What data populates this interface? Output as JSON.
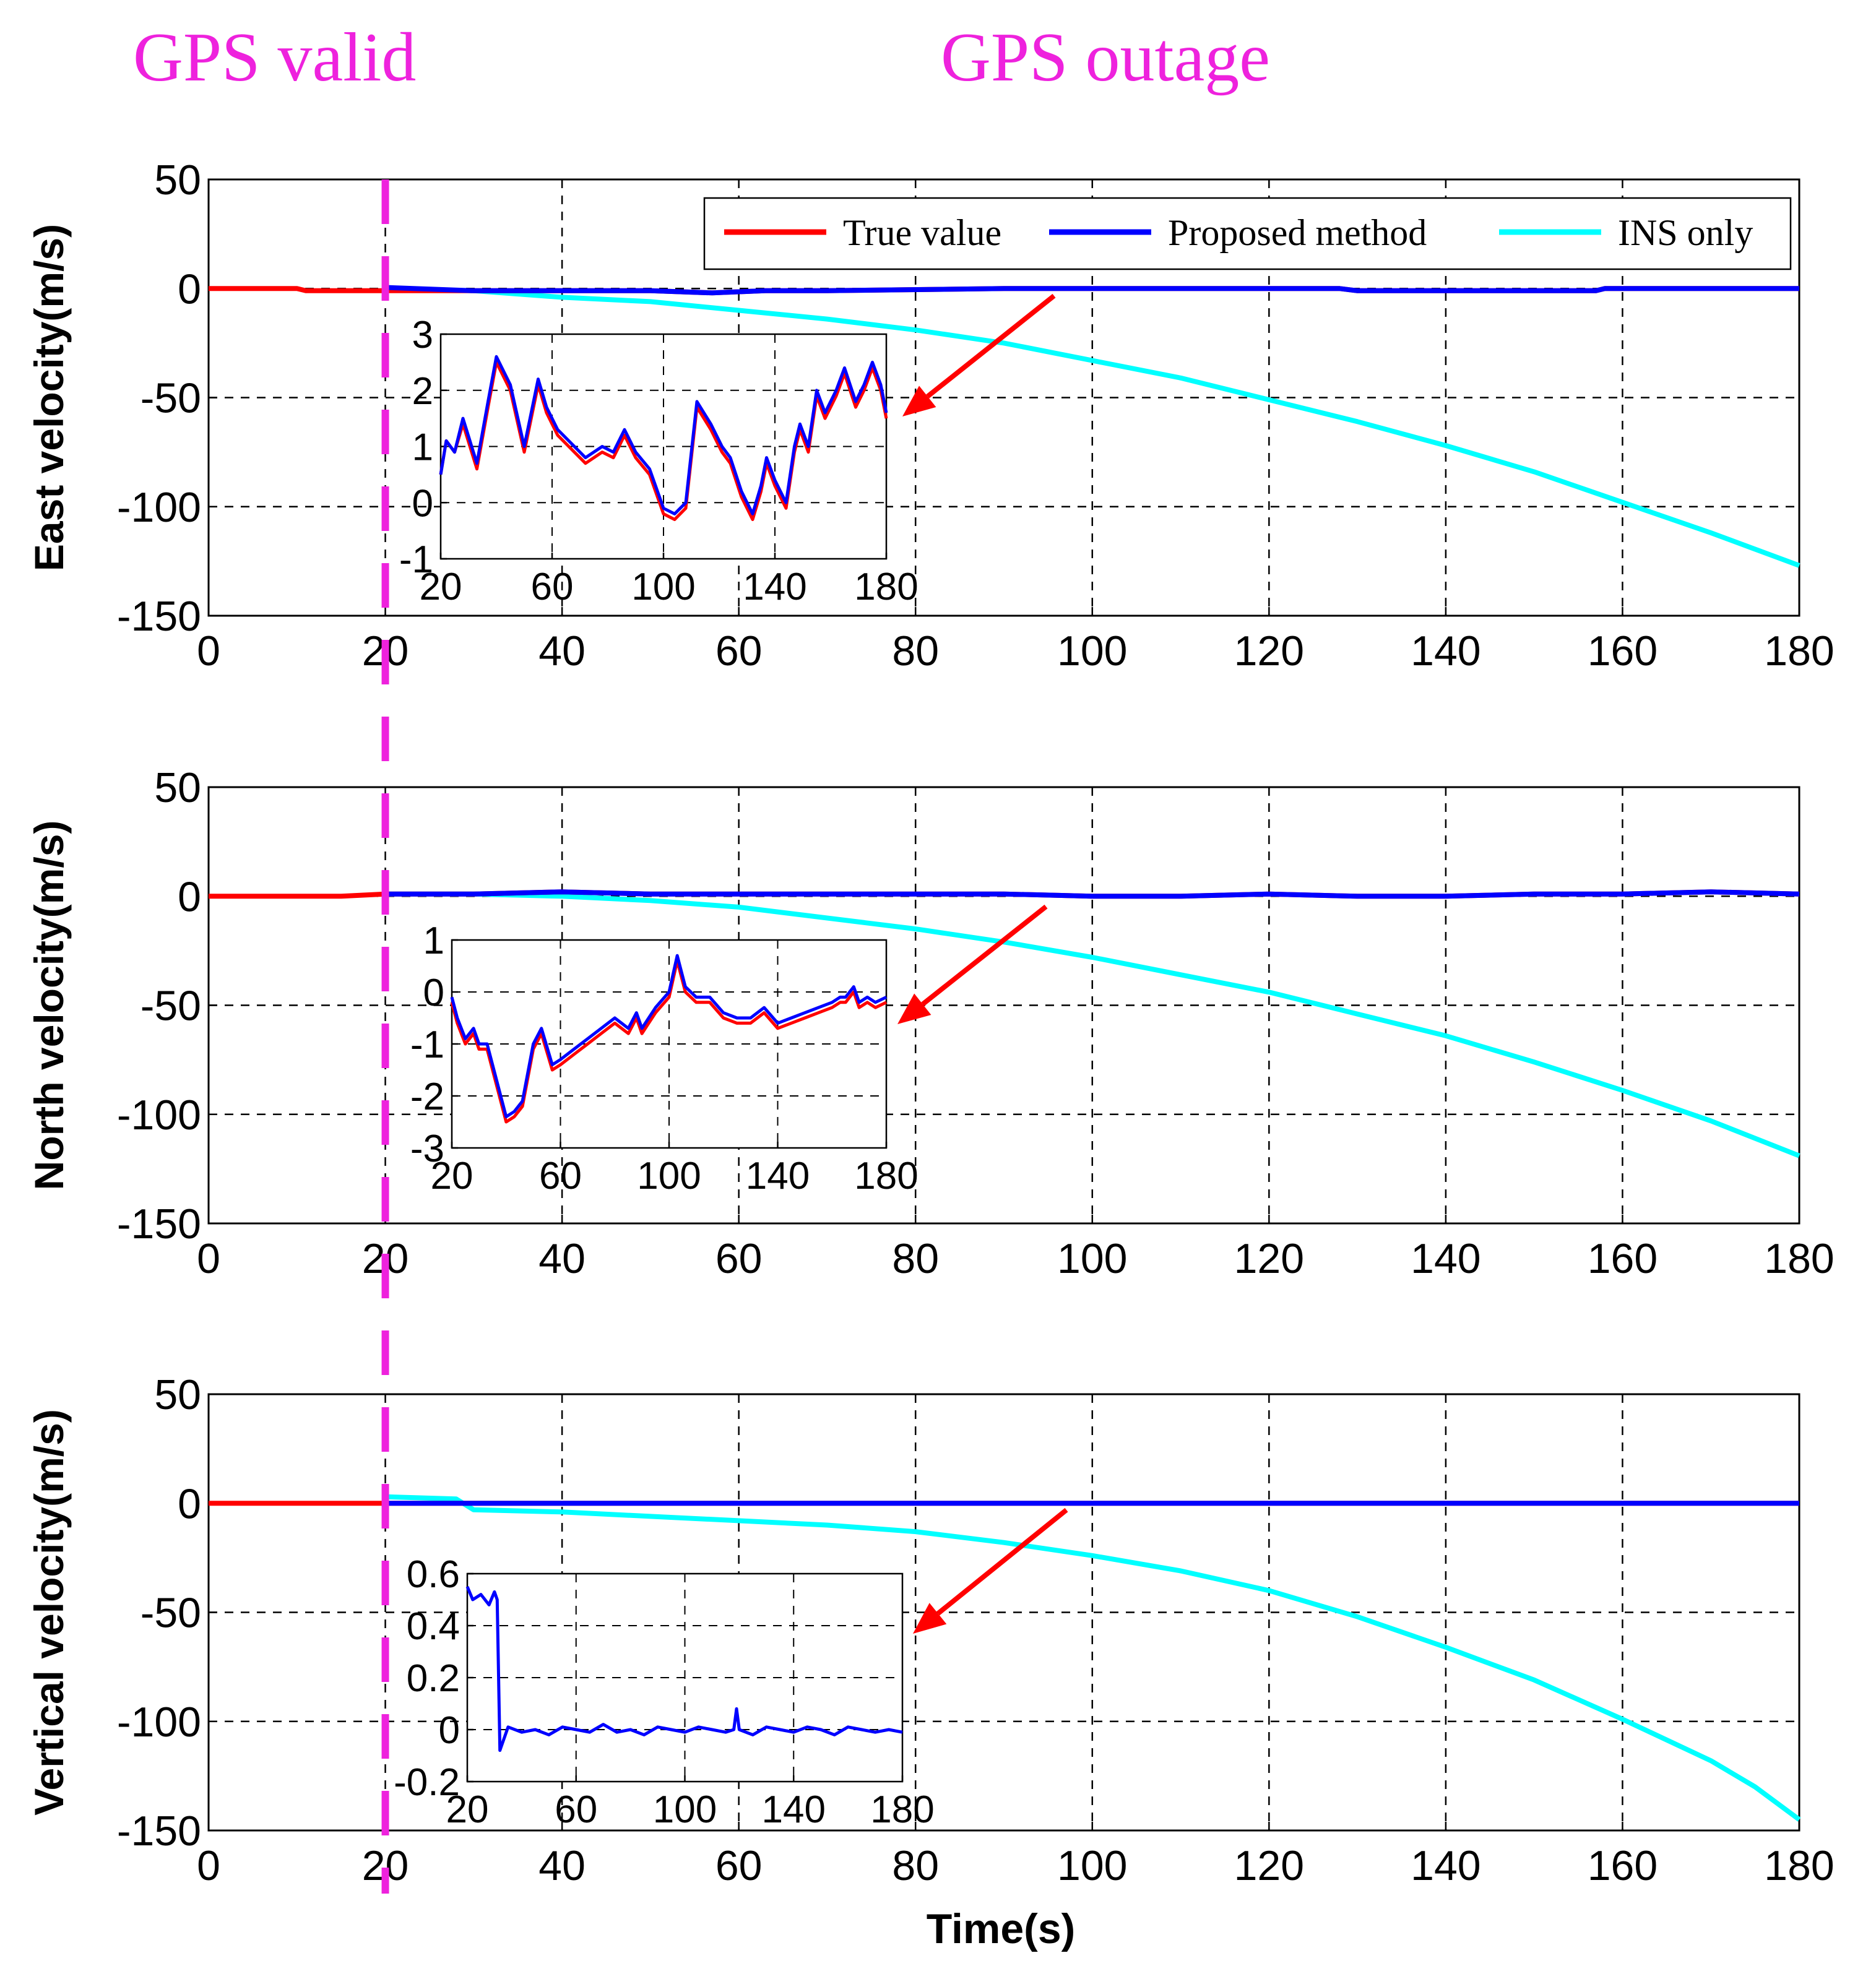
{
  "annotations": {
    "gps_valid": "GPS valid",
    "gps_outage": "GPS outage"
  },
  "colors": {
    "true_value": "#ff0000",
    "proposed_method": "#0000ff",
    "ins_only": "#00ffff",
    "outage_marker": "#ee22dd",
    "arrow": "#ff0000"
  },
  "chart_data": [
    {
      "type": "line",
      "id": "east",
      "ylabel": "East velocity(m/s)",
      "xlabel": "",
      "xlim": [
        0,
        180
      ],
      "ylim": [
        -150,
        50
      ],
      "xticks": [
        0,
        20,
        40,
        60,
        80,
        100,
        120,
        140,
        160,
        180
      ],
      "yticks": [
        50,
        0,
        -50,
        -100,
        -150
      ],
      "grid": true,
      "legend": {
        "position": "top-right",
        "entries": [
          "True value",
          "Proposed method",
          "INS only"
        ]
      },
      "outage_start": 20,
      "series": [
        {
          "name": "True value",
          "color": "#ff0000",
          "x": [
            0,
            10,
            11,
            20,
            30,
            40,
            50,
            57,
            63,
            70,
            90,
            100,
            128,
            130,
            145,
            150,
            157,
            158,
            180
          ],
          "y": [
            0,
            0,
            -1,
            -1,
            -1,
            -1,
            -1,
            -2,
            -1,
            -1,
            0,
            0,
            0,
            -1,
            -1,
            -1,
            -1,
            0,
            0
          ]
        },
        {
          "name": "Proposed method",
          "color": "#0000ff",
          "x": [
            20,
            30,
            40,
            50,
            57,
            63,
            70,
            90,
            100,
            128,
            130,
            145,
            150,
            157,
            158,
            180
          ],
          "y": [
            0.5,
            -1,
            -1,
            -1,
            -2,
            -1,
            -1,
            0,
            0,
            0,
            -1,
            -1,
            -1,
            -1,
            0,
            0
          ]
        },
        {
          "name": "INS only",
          "color": "#00ffff",
          "x": [
            20,
            30,
            40,
            50,
            60,
            70,
            80,
            90,
            100,
            110,
            120,
            130,
            140,
            150,
            160,
            170,
            180
          ],
          "y": [
            0,
            -1,
            -4,
            -6,
            -10,
            -14,
            -19,
            -25,
            -33,
            -41,
            -51,
            -61,
            -72,
            -84,
            -98,
            -112,
            -127
          ]
        }
      ],
      "inset": {
        "xlim": [
          20,
          180
        ],
        "ylim": [
          -1,
          3
        ],
        "xticks": [
          20,
          60,
          100,
          140,
          180
        ],
        "yticks": [
          3,
          2,
          1,
          0,
          -1
        ],
        "grid": true,
        "series": [
          {
            "name": "True value",
            "color": "#ff0000",
            "x": [
              20,
              22,
              25,
              28,
              33,
              37,
              40,
              45,
              50,
              55,
              58,
              62,
              68,
              72,
              78,
              82,
              86,
              90,
              95,
              100,
              104,
              108,
              112,
              117,
              121,
              124,
              128,
              132,
              135,
              137,
              140,
              144,
              147,
              149,
              152,
              155,
              158,
              162,
              165,
              169,
              172,
              175,
              178,
              180
            ],
            "y": [
              0.5,
              1.1,
              0.9,
              1.4,
              0.6,
              1.7,
              2.5,
              2.0,
              0.9,
              2.1,
              1.6,
              1.2,
              0.9,
              0.7,
              0.9,
              0.8,
              1.2,
              0.8,
              0.5,
              -0.2,
              -0.3,
              -0.1,
              1.7,
              1.3,
              0.9,
              0.7,
              0.1,
              -0.3,
              0.2,
              0.7,
              0.3,
              -0.1,
              0.9,
              1.3,
              0.9,
              1.9,
              1.5,
              1.9,
              2.3,
              1.7,
              2.0,
              2.4,
              2.0,
              1.5
            ]
          },
          {
            "name": "Proposed method",
            "color": "#0000ff",
            "x": [
              20,
              22,
              25,
              28,
              33,
              37,
              40,
              45,
              50,
              55,
              58,
              62,
              68,
              72,
              78,
              82,
              86,
              90,
              95,
              100,
              104,
              108,
              112,
              117,
              121,
              124,
              128,
              132,
              135,
              137,
              140,
              144,
              147,
              149,
              152,
              155,
              158,
              162,
              165,
              169,
              172,
              175,
              178,
              180
            ],
            "y": [
              0.5,
              1.1,
              0.9,
              1.5,
              0.7,
              1.8,
              2.6,
              2.1,
              1.0,
              2.2,
              1.7,
              1.3,
              1.0,
              0.8,
              1.0,
              0.9,
              1.3,
              0.9,
              0.6,
              -0.1,
              -0.2,
              0.0,
              1.8,
              1.4,
              1.0,
              0.8,
              0.2,
              -0.2,
              0.3,
              0.8,
              0.4,
              0.0,
              1.0,
              1.4,
              1.0,
              2.0,
              1.6,
              2.0,
              2.4,
              1.8,
              2.1,
              2.5,
              2.1,
              1.6
            ]
          }
        ]
      }
    },
    {
      "type": "line",
      "id": "north",
      "ylabel": "North velocity(m/s)",
      "xlabel": "",
      "xlim": [
        0,
        180
      ],
      "ylim": [
        -150,
        50
      ],
      "xticks": [
        0,
        20,
        40,
        60,
        80,
        100,
        120,
        140,
        160,
        180
      ],
      "yticks": [
        50,
        0,
        -50,
        -100,
        -150
      ],
      "grid": true,
      "outage_start": 20,
      "series": [
        {
          "name": "True value",
          "color": "#ff0000",
          "x": [
            0,
            10,
            15,
            20,
            30,
            40,
            50,
            60,
            70,
            90,
            100,
            110,
            120,
            130,
            140,
            150,
            160,
            170,
            180
          ],
          "y": [
            0,
            0,
            0,
            1,
            1,
            2,
            1,
            1,
            1,
            1,
            0,
            0,
            1,
            0,
            0,
            1,
            1,
            2,
            1
          ]
        },
        {
          "name": "Proposed method",
          "color": "#0000ff",
          "x": [
            20,
            30,
            40,
            50,
            60,
            70,
            90,
            100,
            110,
            120,
            130,
            140,
            150,
            160,
            170,
            180
          ],
          "y": [
            1,
            1,
            2,
            1,
            1,
            1,
            1,
            0,
            0,
            1,
            0,
            0,
            1,
            1,
            2,
            1
          ]
        },
        {
          "name": "INS only",
          "color": "#00ffff",
          "x": [
            20,
            30,
            40,
            50,
            60,
            70,
            80,
            90,
            100,
            110,
            120,
            130,
            140,
            150,
            160,
            170,
            180
          ],
          "y": [
            1,
            1,
            0,
            -2,
            -5,
            -10,
            -15,
            -21,
            -28,
            -36,
            -44,
            -54,
            -64,
            -76,
            -89,
            -103,
            -119
          ]
        }
      ],
      "inset": {
        "xlim": [
          20,
          180
        ],
        "ylim": [
          -3,
          1
        ],
        "xticks": [
          20,
          60,
          100,
          140,
          180
        ],
        "yticks": [
          1,
          0,
          -1,
          -2,
          -3
        ],
        "grid": true,
        "series": [
          {
            "name": "True value",
            "color": "#ff0000",
            "x": [
              20,
              22,
              25,
              28,
              30,
              33,
              36,
              40,
              43,
              46,
              50,
              53,
              57,
              60,
              65,
              70,
              75,
              80,
              85,
              88,
              90,
              95,
              100,
              103,
              106,
              110,
              115,
              120,
              125,
              130,
              135,
              140,
              145,
              150,
              155,
              160,
              163,
              165,
              168,
              170,
              173,
              176,
              180
            ],
            "y": [
              -0.2,
              -0.6,
              -1.0,
              -0.8,
              -1.1,
              -1.1,
              -1.7,
              -2.5,
              -2.4,
              -2.2,
              -1.1,
              -0.8,
              -1.5,
              -1.4,
              -1.2,
              -1.0,
              -0.8,
              -0.6,
              -0.8,
              -0.5,
              -0.8,
              -0.4,
              -0.1,
              0.6,
              0.0,
              -0.2,
              -0.2,
              -0.5,
              -0.6,
              -0.6,
              -0.4,
              -0.7,
              -0.6,
              -0.5,
              -0.4,
              -0.3,
              -0.2,
              -0.2,
              0.0,
              -0.3,
              -0.2,
              -0.3,
              -0.2
            ]
          },
          {
            "name": "Proposed method",
            "color": "#0000ff",
            "x": [
              20,
              22,
              25,
              28,
              30,
              33,
              36,
              40,
              43,
              46,
              50,
              53,
              57,
              60,
              65,
              70,
              75,
              80,
              85,
              88,
              90,
              95,
              100,
              103,
              106,
              110,
              115,
              120,
              125,
              130,
              135,
              140,
              145,
              150,
              155,
              160,
              163,
              165,
              168,
              170,
              173,
              176,
              180
            ],
            "y": [
              -0.1,
              -0.5,
              -0.9,
              -0.7,
              -1.0,
              -1.0,
              -1.6,
              -2.4,
              -2.3,
              -2.1,
              -1.0,
              -0.7,
              -1.4,
              -1.3,
              -1.1,
              -0.9,
              -0.7,
              -0.5,
              -0.7,
              -0.4,
              -0.7,
              -0.3,
              0.0,
              0.7,
              0.1,
              -0.1,
              -0.1,
              -0.4,
              -0.5,
              -0.5,
              -0.3,
              -0.6,
              -0.5,
              -0.4,
              -0.3,
              -0.2,
              -0.1,
              -0.1,
              0.1,
              -0.2,
              -0.1,
              -0.2,
              -0.1
            ]
          }
        ]
      }
    },
    {
      "type": "line",
      "id": "vertical",
      "ylabel": "Vertical velocity(m/s)",
      "xlabel": "Time(s)",
      "xlim": [
        0,
        180
      ],
      "ylim": [
        -150,
        50
      ],
      "xticks": [
        0,
        20,
        40,
        60,
        80,
        100,
        120,
        140,
        160,
        180
      ],
      "yticks": [
        50,
        0,
        -50,
        -100,
        -150
      ],
      "grid": true,
      "outage_start": 20,
      "series": [
        {
          "name": "True value",
          "color": "#ff0000",
          "x": [
            0,
            20,
            180
          ],
          "y": [
            0,
            0,
            0
          ]
        },
        {
          "name": "Proposed method",
          "color": "#0000ff",
          "x": [
            20,
            180
          ],
          "y": [
            0,
            0
          ]
        },
        {
          "name": "INS only",
          "color": "#00ffff",
          "x": [
            20,
            28,
            30,
            40,
            50,
            60,
            70,
            80,
            90,
            100,
            110,
            120,
            130,
            140,
            150,
            160,
            170,
            175,
            180
          ],
          "y": [
            3,
            2,
            -3,
            -4,
            -6,
            -8,
            -10,
            -13,
            -18,
            -24,
            -31,
            -40,
            -52,
            -66,
            -81,
            -99,
            -118,
            -130,
            -145
          ]
        }
      ],
      "inset": {
        "xlim": [
          20,
          180
        ],
        "ylim": [
          -0.2,
          0.6
        ],
        "xticks": [
          20,
          60,
          100,
          140,
          180
        ],
        "yticks": [
          0.6,
          0.4,
          0.2,
          0,
          -0.2
        ],
        "grid": true,
        "series": [
          {
            "name": "Proposed method",
            "color": "#0000ff",
            "x": [
              20,
              22,
              25,
              28,
              30,
              31,
              32,
              35,
              40,
              45,
              50,
              55,
              60,
              65,
              70,
              75,
              80,
              85,
              90,
              95,
              100,
              105,
              110,
              115,
              118,
              119,
              120,
              125,
              130,
              135,
              140,
              145,
              150,
              155,
              160,
              165,
              170,
              175,
              180
            ],
            "y": [
              0.55,
              0.5,
              0.52,
              0.48,
              0.53,
              0.5,
              -0.08,
              0.01,
              -0.01,
              0.0,
              -0.02,
              0.01,
              0.0,
              -0.01,
              0.02,
              -0.01,
              0.0,
              -0.02,
              0.01,
              0.0,
              -0.01,
              0.01,
              0.0,
              -0.01,
              0.0,
              0.08,
              0.0,
              -0.02,
              0.01,
              0.0,
              -0.01,
              0.01,
              0.0,
              -0.02,
              0.01,
              0.0,
              -0.01,
              0.0,
              -0.01
            ]
          }
        ]
      }
    }
  ]
}
